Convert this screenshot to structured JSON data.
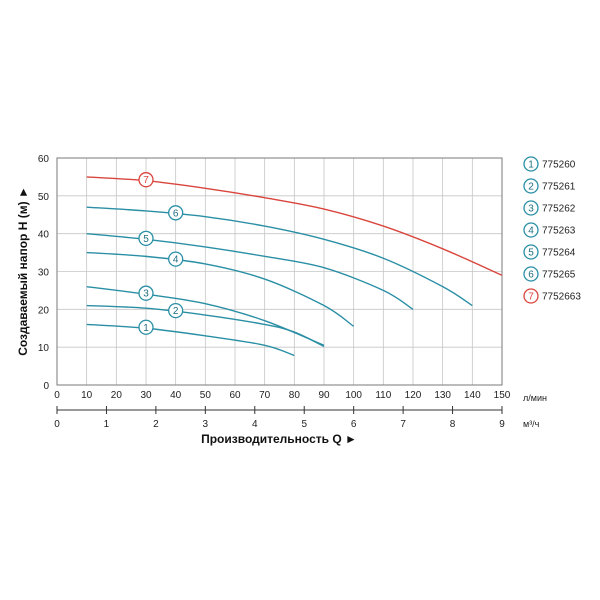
{
  "chart_data": {
    "type": "line",
    "title": "",
    "ylabel": "Создаваемый напор H (м) ►",
    "xlabel": "Производительность Q ►",
    "x_unit": "л/мин",
    "x2_unit": "м³/ч",
    "xlim": [
      0,
      150
    ],
    "ylim": [
      0,
      60
    ],
    "x_ticks": [
      0,
      10,
      20,
      30,
      40,
      50,
      60,
      70,
      80,
      90,
      100,
      110,
      120,
      130,
      140,
      150
    ],
    "y_ticks": [
      0,
      10,
      20,
      30,
      40,
      50,
      60
    ],
    "x2_lim": [
      0,
      9
    ],
    "x2_ticks": [
      0,
      1,
      2,
      3,
      4,
      5,
      6,
      7,
      8,
      9
    ],
    "grid": true,
    "legend_position": "right",
    "series": [
      {
        "marker": "1",
        "name": "775260",
        "color": "#2a8fa5",
        "marker_x": 30,
        "x": [
          10,
          30,
          50,
          70,
          80
        ],
        "y": [
          16,
          15,
          13,
          10.5,
          7.8
        ]
      },
      {
        "marker": "2",
        "name": "775261",
        "color": "#2a8fa5",
        "marker_x": 40,
        "x": [
          10,
          30,
          50,
          70,
          80,
          90
        ],
        "y": [
          21,
          20.3,
          18.5,
          16,
          14,
          10.2
        ]
      },
      {
        "marker": "3",
        "name": "775262",
        "color": "#2a8fa5",
        "marker_x": 30,
        "x": [
          10,
          30,
          50,
          70,
          90
        ],
        "y": [
          26,
          24,
          21.5,
          17,
          10.5
        ]
      },
      {
        "marker": "4",
        "name": "775263",
        "color": "#2a8fa5",
        "marker_x": 40,
        "x": [
          10,
          30,
          50,
          70,
          90,
          100
        ],
        "y": [
          35,
          34,
          32,
          28,
          21,
          15.5
        ]
      },
      {
        "marker": "5",
        "name": "775264",
        "color": "#2a8fa5",
        "marker_x": 30,
        "x": [
          10,
          30,
          50,
          70,
          90,
          110,
          120
        ],
        "y": [
          40,
          38.5,
          36.5,
          34,
          31,
          25,
          20
        ]
      },
      {
        "marker": "6",
        "name": "775265",
        "color": "#2a8fa5",
        "marker_x": 40,
        "x": [
          10,
          30,
          50,
          70,
          90,
          110,
          130,
          140
        ],
        "y": [
          47,
          46,
          44.5,
          42,
          38.5,
          33.5,
          26,
          21
        ]
      },
      {
        "marker": "7",
        "name": "7752663",
        "color": "#d9463e",
        "marker_x": 30,
        "x": [
          10,
          30,
          50,
          70,
          90,
          110,
          130,
          150
        ],
        "y": [
          55,
          54,
          52,
          49.5,
          46.5,
          42,
          36,
          29
        ]
      }
    ]
  }
}
